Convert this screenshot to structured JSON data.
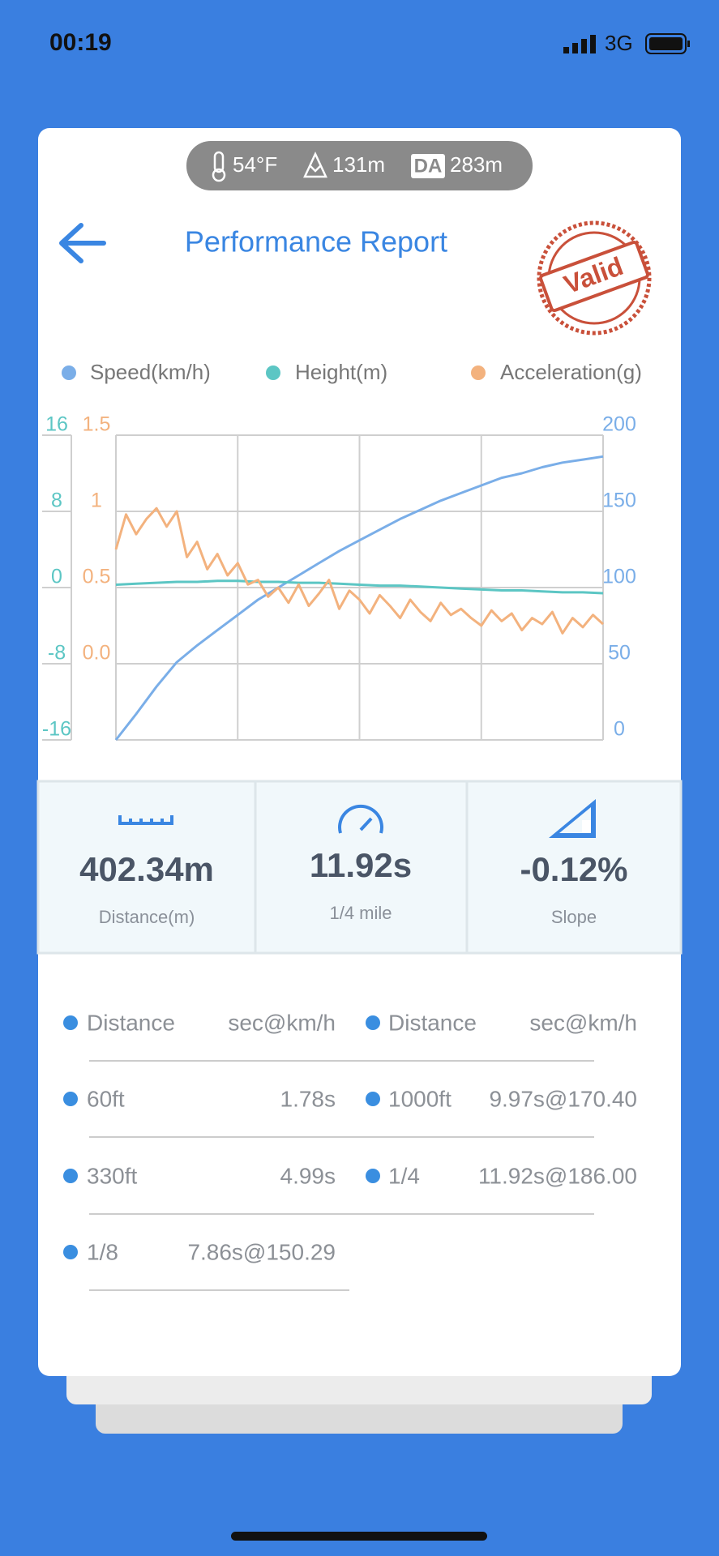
{
  "status_bar": {
    "time": "00:19",
    "network": "3G"
  },
  "conditions": {
    "temperature": "54°F",
    "altitude": "131m",
    "da_badge": "DA",
    "density_altitude": "283m"
  },
  "header": {
    "title": "Performance Report",
    "stamp": "Valid"
  },
  "chart_data": {
    "type": "line",
    "grid": true,
    "series": [
      {
        "name": "Speed(km/h)",
        "color": "#7aaee8",
        "axis": "y",
        "values": [
          0,
          17,
          35,
          51,
          62,
          72,
          82,
          92,
          100,
          108,
          116,
          124,
          131,
          138,
          145,
          151,
          157,
          162,
          167,
          172,
          175,
          179,
          182,
          184,
          186
        ]
      },
      {
        "name": "Height(m)",
        "color": "#5cc6c4",
        "axis": "y2",
        "values": [
          0.3,
          0.4,
          0.5,
          0.6,
          0.6,
          0.7,
          0.7,
          0.6,
          0.6,
          0.5,
          0.5,
          0.4,
          0.3,
          0.2,
          0.2,
          0.1,
          0,
          -0.1,
          -0.2,
          -0.3,
          -0.3,
          -0.4,
          -0.5,
          -0.5,
          -0.6
        ]
      },
      {
        "name": "Acceleration(g)",
        "color": "#f3b27e",
        "axis": "y3",
        "values": [
          0.75,
          0.98,
          0.85,
          0.95,
          1.02,
          0.9,
          1.0,
          0.7,
          0.8,
          0.62,
          0.72,
          0.58,
          0.66,
          0.52,
          0.55,
          0.44,
          0.5,
          0.4,
          0.52,
          0.38,
          0.46,
          0.55,
          0.36,
          0.48,
          0.42,
          0.33,
          0.45,
          0.38,
          0.3,
          0.42,
          0.34,
          0.28,
          0.4,
          0.32,
          0.36,
          0.3,
          0.25,
          0.35,
          0.28,
          0.33,
          0.22,
          0.3,
          0.26,
          0.34,
          0.2,
          0.3,
          0.24,
          0.32,
          0.26
        ]
      }
    ],
    "ylim": [
      0,
      200
    ],
    "yticks": [
      0,
      50,
      100,
      150,
      200
    ],
    "y2lim": [
      -16,
      16
    ],
    "y2ticks": [
      -16,
      -8,
      0,
      8,
      16
    ],
    "y3lim": [
      -0.5,
      1.5
    ],
    "y3ticks": [
      {
        "value": 0,
        "label": "0.0"
      },
      0.5,
      1,
      1.5
    ]
  },
  "stats": [
    {
      "value": "402.34m",
      "label": "Distance(m)"
    },
    {
      "value": "11.92s",
      "label": "1/4 mile"
    },
    {
      "value": "-0.12%",
      "label": "Slope"
    }
  ],
  "table": {
    "header": [
      "Distance",
      "sec@km/h",
      "Distance",
      "sec@km/h"
    ],
    "rows": [
      [
        "60ft",
        "1.78s",
        "1000ft",
        "9.97s@170.40"
      ],
      [
        "330ft",
        "4.99s",
        "1/4",
        "11.92s@186.00"
      ],
      [
        "1/8",
        "7.86s@150.29"
      ]
    ]
  }
}
